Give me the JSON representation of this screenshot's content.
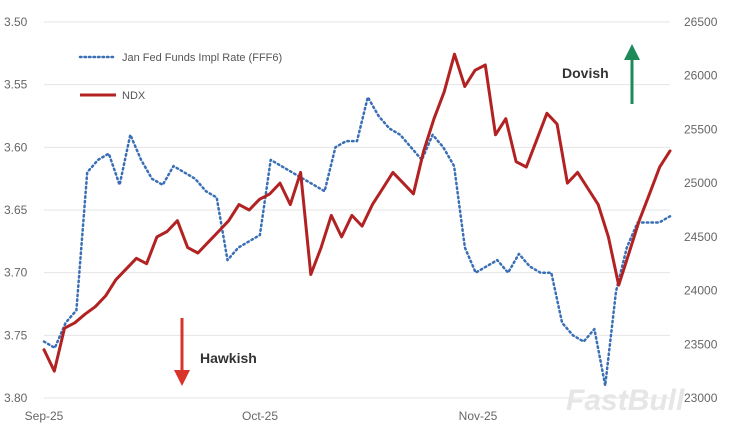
{
  "chart_data": {
    "type": "line",
    "x_ticks": [
      "Sep-25",
      "Oct-25",
      "Nov-25"
    ],
    "left_axis": {
      "ticks": [
        "3.50",
        "3.55",
        "3.60",
        "3.65",
        "3.70",
        "3.75",
        "3.80"
      ],
      "range": [
        3.5,
        3.8
      ],
      "inverted": true
    },
    "right_axis": {
      "ticks": [
        "26500",
        "26000",
        "25500",
        "25000",
        "24500",
        "24000",
        "23500",
        "23000"
      ],
      "range": [
        23000,
        26500
      ]
    },
    "grid": "horizontal",
    "legend_placement": "top-left",
    "series": [
      {
        "name": "Jan Fed Funds Impl Rate (FFF6)",
        "axis": "left",
        "style": "dotted",
        "color": "#3a6fb5",
        "values": [
          3.755,
          3.76,
          3.74,
          3.73,
          3.62,
          3.61,
          3.605,
          3.63,
          3.59,
          3.61,
          3.625,
          3.63,
          3.615,
          3.62,
          3.625,
          3.635,
          3.64,
          3.69,
          3.68,
          3.675,
          3.67,
          3.61,
          3.615,
          3.62,
          3.625,
          3.63,
          3.635,
          3.6,
          3.595,
          3.595,
          3.56,
          3.575,
          3.585,
          3.59,
          3.6,
          3.61,
          3.59,
          3.6,
          3.615,
          3.68,
          3.7,
          3.695,
          3.69,
          3.7,
          3.685,
          3.695,
          3.7,
          3.7,
          3.74,
          3.75,
          3.755,
          3.745,
          3.79,
          3.715,
          3.68,
          3.66,
          3.66,
          3.66,
          3.655
        ]
      },
      {
        "name": "NDX",
        "axis": "right",
        "style": "solid",
        "color": "#b22222",
        "values": [
          23450,
          23250,
          23650,
          23700,
          23780,
          23850,
          23950,
          24100,
          24200,
          24300,
          24250,
          24500,
          24550,
          24650,
          24400,
          24350,
          24450,
          24550,
          24650,
          24800,
          24750,
          24850,
          24900,
          25000,
          24800,
          25100,
          24150,
          24400,
          24700,
          24500,
          24700,
          24600,
          24800,
          24950,
          25100,
          25000,
          24900,
          25300,
          25600,
          25850,
          26200,
          25900,
          26050,
          26100,
          25450,
          25600,
          25200,
          25150,
          25400,
          25650,
          25550,
          25000,
          25100,
          24950,
          24800,
          24500,
          24050,
          24350,
          24650,
          24900,
          25150,
          25300
        ]
      }
    ]
  },
  "annotations": {
    "dovish": "Dovish",
    "hawkish": "Hawkish",
    "dovish_color": "#1e8a5a",
    "hawkish_color": "#d9342b"
  },
  "watermark": "FastBull"
}
